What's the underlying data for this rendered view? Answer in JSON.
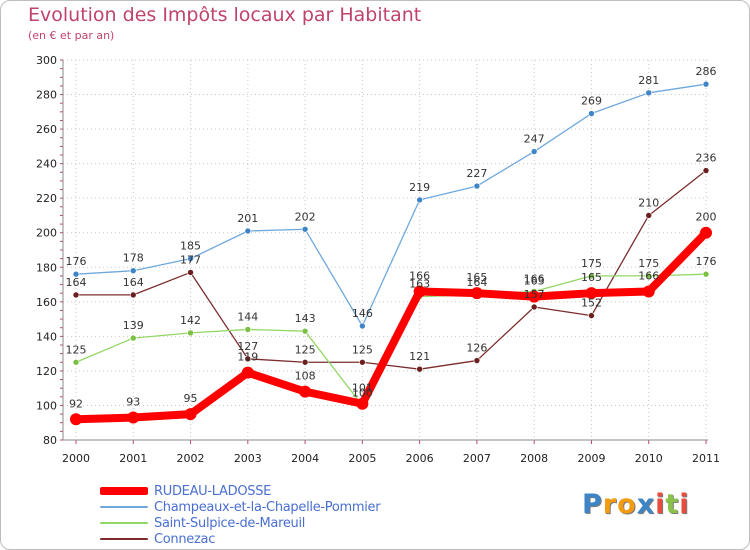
{
  "chart_data": {
    "type": "line",
    "title": "Evolution des Impôts locaux par Habitant",
    "subtitle": "(en € et par an)",
    "x": [
      "2000",
      "2001",
      "2002",
      "2003",
      "2004",
      "2005",
      "2006",
      "2007",
      "2008",
      "2009",
      "2010",
      "2011"
    ],
    "ylim": [
      80,
      300
    ],
    "yticks": [
      80,
      100,
      120,
      140,
      160,
      180,
      200,
      220,
      240,
      260,
      280,
      300
    ],
    "grid": true,
    "xlabel": "",
    "ylabel": "",
    "series": [
      {
        "name": "RUDEAU-LADOSSE",
        "color": "#ff0000",
        "marker": "#ff0000",
        "width": 8,
        "values": [
          92,
          93,
          95,
          119,
          108,
          101,
          166,
          165,
          163,
          165,
          166,
          200
        ],
        "labels": [
          "92",
          "93",
          "95",
          "119",
          "108",
          "101",
          "166",
          "165",
          "163",
          "165",
          "166",
          "200"
        ]
      },
      {
        "name": "Champeaux-et-la-Chapelle-Pommier",
        "color": "#6fa8dc",
        "marker": "#3d85c6",
        "width": 1.3,
        "values": [
          176,
          178,
          185,
          201,
          202,
          146,
          219,
          227,
          247,
          269,
          281,
          286
        ],
        "labels": [
          "176",
          "178",
          "185",
          "201",
          "202",
          "146",
          "219",
          "227",
          "247",
          "269",
          "281",
          "286"
        ]
      },
      {
        "name": "Saint-Sulpice-de-Mareuil",
        "color": "#93d764",
        "marker": "#7bc043",
        "width": 1.3,
        "values": [
          125,
          139,
          142,
          144,
          143,
          100,
          163,
          164,
          166,
          175,
          175,
          176
        ],
        "labels": [
          "125",
          "139",
          "142",
          "144",
          "143",
          "100",
          "163",
          "164",
          "166",
          "175",
          "175",
          "176"
        ]
      },
      {
        "name": "Connezac",
        "color": "#7b2c2c",
        "marker": "#6b1f1f",
        "width": 1.3,
        "values": [
          164,
          164,
          177,
          127,
          125,
          125,
          121,
          126,
          157,
          152,
          210,
          236
        ],
        "labels": [
          "164",
          "164",
          "177",
          "127",
          "125",
          "125",
          "121",
          "126",
          "157",
          "152",
          "210",
          "236"
        ]
      }
    ]
  },
  "legend": {
    "items": [
      {
        "label": "RUDEAU-LADOSSE",
        "color": "#ff0000",
        "thickness": 8
      },
      {
        "label": "Champeaux-et-la-Chapelle-Pommier",
        "color": "#6fa8dc",
        "thickness": 2
      },
      {
        "label": "Saint-Sulpice-de-Mareuil",
        "color": "#93d764",
        "thickness": 2
      },
      {
        "label": "Connezac",
        "color": "#7b2c2c",
        "thickness": 2
      }
    ]
  },
  "brand": {
    "letters": [
      "P",
      "r",
      "o",
      "x",
      "i",
      "t",
      "i"
    ],
    "colors": [
      "#3d85c6",
      "#f39c12",
      "#f39c12",
      "#3d85c6",
      "#e74c3c",
      "#8bc34a",
      "#e74c3c"
    ]
  }
}
